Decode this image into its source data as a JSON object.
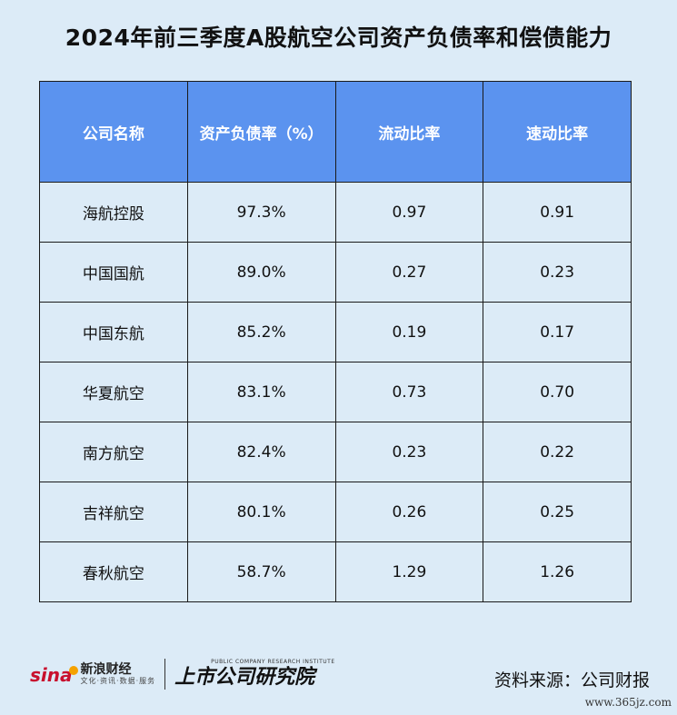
{
  "title": "2024年前三季度A股航空公司资产负债率和偿债能力",
  "chart_data": {
    "type": "table",
    "title": "2024年前三季度A股航空公司资产负债率和偿债能力",
    "columns": [
      "公司名称",
      "资产负债率（%）",
      "流动比率",
      "速动比率"
    ],
    "rows": [
      [
        "海航控股",
        "97.3%",
        "0.97",
        "0.91"
      ],
      [
        "中国国航",
        "89.0%",
        "0.27",
        "0.23"
      ],
      [
        "中国东航",
        "85.2%",
        "0.19",
        "0.17"
      ],
      [
        "华夏航空",
        "83.1%",
        "0.73",
        "0.70"
      ],
      [
        "南方航空",
        "82.4%",
        "0.23",
        "0.22"
      ],
      [
        "吉祥航空",
        "80.1%",
        "0.26",
        "0.25"
      ],
      [
        "春秋航空",
        "58.7%",
        "1.29",
        "1.26"
      ]
    ]
  },
  "colors": {
    "header_bg": "#5b93ef",
    "page_bg": "#dcebf7"
  },
  "footer": {
    "sina_brand": "sina",
    "sina_cn": "新浪财经",
    "sina_sub": "文化·资讯·数据·服务",
    "research_en": "PUBLIC COMPANY RESEARCH INSTITUTE",
    "research_cn": "上市公司研究院",
    "source": "资料来源：公司财报",
    "watermark": "www.365jz.com"
  }
}
